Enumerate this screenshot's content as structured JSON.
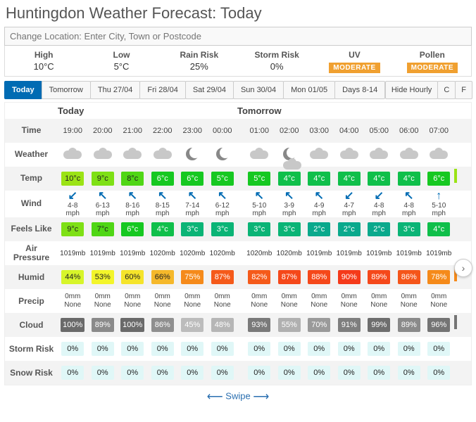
{
  "title": "Huntingdon Weather Forecast: Today",
  "locationPlaceholder": "Change Location: Enter City, Town or Postcode",
  "summary": {
    "high": {
      "label": "High",
      "value": "10°C"
    },
    "low": {
      "label": "Low",
      "value": "5°C"
    },
    "rain": {
      "label": "Rain Risk",
      "value": "25%"
    },
    "storm": {
      "label": "Storm Risk",
      "value": "0%"
    },
    "uv": {
      "label": "UV",
      "value": "MODERATE"
    },
    "pollen": {
      "label": "Pollen",
      "value": "MODERATE"
    }
  },
  "tabs": [
    {
      "label": "Today",
      "active": true
    },
    {
      "label": "Tomorrow"
    },
    {
      "label": "Thu 27/04"
    },
    {
      "label": "Fri 28/04"
    },
    {
      "label": "Sat 29/04"
    },
    {
      "label": "Sun 30/04"
    },
    {
      "label": "Mon 01/05"
    },
    {
      "label": "Days 8-14"
    }
  ],
  "controls": [
    {
      "label": "Hide Hourly"
    },
    {
      "label": "C"
    },
    {
      "label": "F"
    }
  ],
  "sections": {
    "today": "Today",
    "tomorrow": "Tomorrow"
  },
  "swipe": "Swipe",
  "splitIndex": 6,
  "hours": [
    "19:00",
    "20:00",
    "21:00",
    "22:00",
    "23:00",
    "00:00",
    "01:00",
    "02:00",
    "03:00",
    "04:00",
    "05:00",
    "06:00",
    "07:00"
  ],
  "rows": [
    {
      "key": "time",
      "label": "Time",
      "type": "time",
      "alt": true
    },
    {
      "key": "weather",
      "label": "Weather",
      "type": "weather",
      "alt": false,
      "values": [
        "cloud",
        "cloud",
        "cloud",
        "cloud",
        "moon",
        "moon",
        "cloud",
        "mooncloud",
        "cloud",
        "cloud",
        "cloud",
        "cloud",
        "cloud"
      ]
    },
    {
      "key": "temp",
      "label": "Temp",
      "type": "chip",
      "alt": true,
      "values": [
        "10°c",
        "9°c",
        "8°c",
        "6°c",
        "6°c",
        "5°c",
        "5°c",
        "4°c",
        "4°c",
        "4°c",
        "4°c",
        "4°c",
        "6°c"
      ],
      "colors": [
        "#9be315",
        "#7ee015",
        "#4fd615",
        "#16c821",
        "#16c821",
        "#16c821",
        "#16c821",
        "#0fbf4a",
        "#0fbf4a",
        "#0fbf4a",
        "#0fbf4a",
        "#0fbf4a",
        "#16c821"
      ],
      "darkText": [
        true,
        true,
        true,
        false,
        false,
        false,
        false,
        false,
        false,
        false,
        false,
        false,
        false
      ],
      "endColor": "#9be315"
    },
    {
      "key": "wind",
      "label": "Wind",
      "type": "wind",
      "alt": false,
      "ranges": [
        "4-8",
        "6-13",
        "8-16",
        "8-15",
        "7-14",
        "6-12",
        "5-10",
        "3-9",
        "4-9",
        "4-7",
        "4-8",
        "4-8",
        "5-10"
      ],
      "unit": "mph",
      "arrows": [
        "↙",
        "↖",
        "↖",
        "↖",
        "↖",
        "↖",
        "↖",
        "↖",
        "↖",
        "↙",
        "↙",
        "↖",
        "↑"
      ]
    },
    {
      "key": "feels",
      "label": "Feels Like",
      "type": "chip",
      "alt": true,
      "values": [
        "9°c",
        "7°c",
        "6°c",
        "4°c",
        "3°c",
        "3°c",
        "3°c",
        "3°c",
        "2°c",
        "2°c",
        "2°c",
        "3°c",
        "4°c"
      ],
      "colors": [
        "#7ee015",
        "#4fd615",
        "#16c821",
        "#0fbf4a",
        "#0bb476",
        "#0bb476",
        "#0bb476",
        "#0bb476",
        "#0aa98c",
        "#0aa98c",
        "#0aa98c",
        "#0bb476",
        "#0fbf4a"
      ],
      "darkText": [
        true,
        true,
        false,
        false,
        false,
        false,
        false,
        false,
        false,
        false,
        false,
        false,
        false
      ]
    },
    {
      "key": "pressure",
      "label": "Air Pressure",
      "type": "text",
      "alt": false,
      "values": [
        "1019mb",
        "1019mb",
        "1019mb",
        "1020mb",
        "1020mb",
        "1020mb",
        "1020mb",
        "1020mb",
        "1019mb",
        "1019mb",
        "1019mb",
        "1019mb",
        "1019mb"
      ]
    },
    {
      "key": "humid",
      "label": "Humid",
      "type": "chip",
      "alt": true,
      "values": [
        "44%",
        "53%",
        "60%",
        "66%",
        "75%",
        "87%",
        "82%",
        "87%",
        "88%",
        "90%",
        "89%",
        "86%",
        "78%"
      ],
      "colors": [
        "#d7f52a",
        "#f3f52a",
        "#f5e42a",
        "#f5b82a",
        "#f58a1a",
        "#f55a1a",
        "#f55a1a",
        "#f5481a",
        "#f5481a",
        "#f53a1a",
        "#f5481a",
        "#f5551a",
        "#f58a1a"
      ],
      "darkText": [
        true,
        true,
        true,
        true,
        false,
        false,
        false,
        false,
        false,
        false,
        false,
        false,
        false
      ],
      "endColor": "#f58a1a"
    },
    {
      "key": "precip",
      "label": "Precip",
      "type": "precip",
      "alt": false,
      "amounts": [
        "0mm",
        "0mm",
        "0mm",
        "0mm",
        "0mm",
        "0mm",
        "0mm",
        "0mm",
        "0mm",
        "0mm",
        "0mm",
        "0mm",
        "0mm"
      ],
      "kinds": [
        "None",
        "None",
        "None",
        "None",
        "None",
        "None",
        "None",
        "None",
        "None",
        "None",
        "None",
        "None",
        "None"
      ]
    },
    {
      "key": "cloud",
      "label": "Cloud",
      "type": "chip",
      "alt": true,
      "values": [
        "100%",
        "89%",
        "100%",
        "86%",
        "45%",
        "48%",
        "93%",
        "55%",
        "70%",
        "91%",
        "99%",
        "89%",
        "96%"
      ],
      "colors": [
        "#6a6a6a",
        "#8a8a8a",
        "#6a6a6a",
        "#8f8f8f",
        "#bcbcbc",
        "#b6b6b6",
        "#7a7a7a",
        "#b0b0b0",
        "#9a9a9a",
        "#7e7e7e",
        "#6e6e6e",
        "#8a8a8a",
        "#747474"
      ],
      "darkText": [
        false,
        false,
        false,
        false,
        false,
        false,
        false,
        false,
        false,
        false,
        false,
        false,
        false
      ],
      "endColor": "#747474"
    },
    {
      "key": "stormrisk",
      "label": "Storm Risk",
      "type": "chip",
      "alt": false,
      "values": [
        "0%",
        "0%",
        "0%",
        "0%",
        "0%",
        "0%",
        "0%",
        "0%",
        "0%",
        "0%",
        "0%",
        "0%",
        "0%"
      ],
      "colors": [
        "#e0f7f7",
        "#e0f7f7",
        "#e0f7f7",
        "#e0f7f7",
        "#e0f7f7",
        "#e0f7f7",
        "#e0f7f7",
        "#e0f7f7",
        "#e0f7f7",
        "#e0f7f7",
        "#e0f7f7",
        "#e0f7f7",
        "#e0f7f7"
      ],
      "darkText": [
        true,
        true,
        true,
        true,
        true,
        true,
        true,
        true,
        true,
        true,
        true,
        true,
        true
      ]
    },
    {
      "key": "snowrisk",
      "label": "Snow Risk",
      "type": "chip",
      "alt": true,
      "values": [
        "0%",
        "0%",
        "0%",
        "0%",
        "0%",
        "0%",
        "0%",
        "0%",
        "0%",
        "0%",
        "0%",
        "0%",
        "0%"
      ],
      "colors": [
        "#e0f7f7",
        "#e0f7f7",
        "#e0f7f7",
        "#e0f7f7",
        "#e0f7f7",
        "#e0f7f7",
        "#e0f7f7",
        "#e0f7f7",
        "#e0f7f7",
        "#e0f7f7",
        "#e0f7f7",
        "#e0f7f7",
        "#e0f7f7"
      ],
      "darkText": [
        true,
        true,
        true,
        true,
        true,
        true,
        true,
        true,
        true,
        true,
        true,
        true,
        true
      ]
    }
  ]
}
